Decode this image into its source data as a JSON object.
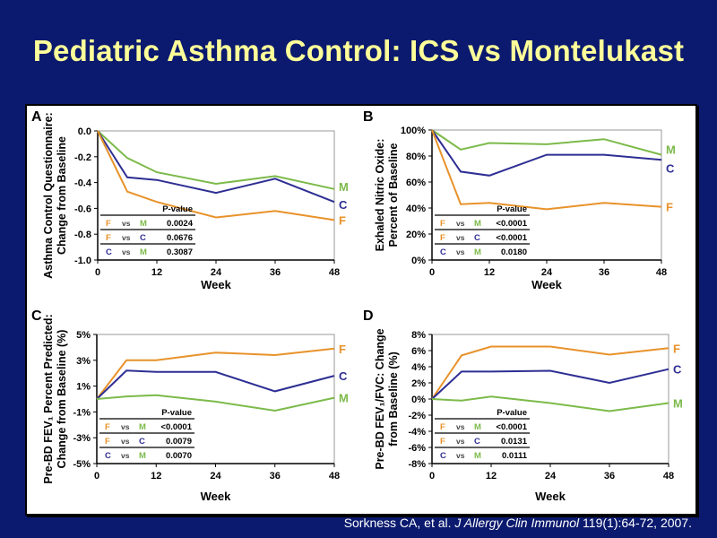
{
  "slide": {
    "title": "Pediatric Asthma Control: ICS vs Montelukast",
    "citation_authors": "Sorkness CA, et al.",
    "citation_journal": "J Allergy Clin Immunol",
    "citation_rest": "119(1):64-72, 2007."
  },
  "colors": {
    "F": "#e8922a",
    "C": "#2e2e94",
    "M": "#7cba4a",
    "background": "#0b1a6e",
    "title": "#ffff99"
  },
  "pvalue_header": "P-value",
  "vs_label": "vs",
  "chart_data": [
    {
      "panel": "A",
      "type": "line",
      "ylabel": [
        "Asthma Control Questionnaire:",
        "Change from Baseline"
      ],
      "xlabel": "Week",
      "x": [
        0,
        6,
        12,
        24,
        36,
        48
      ],
      "xticks": [
        0,
        12,
        24,
        36,
        48
      ],
      "ylim": [
        -1.0,
        0.0
      ],
      "yticks": [
        0.0,
        -0.2,
        -0.4,
        -0.6,
        -0.8,
        -1.0
      ],
      "ytick_labels": [
        "0.0",
        "-0.2",
        "-0.4",
        "-0.6",
        "-0.8",
        "-1.0"
      ],
      "series": [
        {
          "name": "M",
          "values": [
            0,
            -0.21,
            -0.32,
            -0.41,
            -0.35,
            -0.45
          ]
        },
        {
          "name": "C",
          "values": [
            0,
            -0.36,
            -0.38,
            -0.48,
            -0.37,
            -0.55
          ]
        },
        {
          "name": "F",
          "values": [
            0,
            -0.47,
            -0.55,
            -0.67,
            -0.62,
            -0.69
          ]
        }
      ],
      "pvalues": [
        {
          "a": "F",
          "b": "M",
          "p": "0.0024"
        },
        {
          "a": "F",
          "b": "C",
          "p": "0.0676"
        },
        {
          "a": "C",
          "b": "M",
          "p": "0.3087"
        }
      ]
    },
    {
      "panel": "B",
      "type": "line",
      "ylabel": [
        "Exhaled Nitric Oxide:",
        "Percent of Baseline"
      ],
      "xlabel": "Week",
      "x": [
        0,
        6,
        12,
        24,
        36,
        48
      ],
      "xticks": [
        0,
        12,
        24,
        36,
        48
      ],
      "ylim": [
        0,
        100
      ],
      "yticks": [
        100,
        80,
        60,
        40,
        20,
        0
      ],
      "ytick_labels": [
        "100%",
        "80%",
        "60%",
        "40%",
        "20%",
        "0%"
      ],
      "series": [
        {
          "name": "M",
          "values": [
            100,
            85,
            90,
            89,
            93,
            81
          ]
        },
        {
          "name": "C",
          "values": [
            100,
            68,
            65,
            81,
            81,
            77
          ]
        },
        {
          "name": "F",
          "values": [
            100,
            43,
            44,
            39,
            44,
            41
          ]
        }
      ],
      "pvalues": [
        {
          "a": "F",
          "b": "M",
          "p": "<0.0001"
        },
        {
          "a": "F",
          "b": "C",
          "p": "<0.0001"
        },
        {
          "a": "C",
          "b": "M",
          "p": "0.0180"
        }
      ]
    },
    {
      "panel": "C",
      "type": "line",
      "ylabel": [
        "Pre-BD FEV₁ Percent Predicted:",
        "Change from Baseline (%)"
      ],
      "xlabel": "Week",
      "x": [
        0,
        6,
        12,
        24,
        36,
        48
      ],
      "xticks": [
        0,
        12,
        24,
        36,
        48
      ],
      "ylim": [
        -5,
        5
      ],
      "yticks": [
        5,
        3,
        1,
        -1,
        -3,
        -5
      ],
      "ytick_labels": [
        "5%",
        "3%",
        "1%",
        "-1%",
        "-3%",
        "-5%"
      ],
      "series": [
        {
          "name": "F",
          "values": [
            0,
            3.0,
            3.0,
            3.6,
            3.4,
            3.9
          ]
        },
        {
          "name": "C",
          "values": [
            0,
            2.2,
            2.1,
            2.1,
            0.6,
            1.8
          ]
        },
        {
          "name": "M",
          "values": [
            0,
            0.2,
            0.3,
            -0.2,
            -0.9,
            0.1
          ]
        }
      ],
      "pvalues": [
        {
          "a": "F",
          "b": "M",
          "p": "<0.0001"
        },
        {
          "a": "F",
          "b": "C",
          "p": "0.0079"
        },
        {
          "a": "C",
          "b": "M",
          "p": "0.0070"
        }
      ]
    },
    {
      "panel": "D",
      "type": "line",
      "ylabel": [
        "Pre-BD FEV₁/FVC:  Change",
        "from Baseline (%)"
      ],
      "xlabel": "Week",
      "x": [
        0,
        6,
        12,
        24,
        36,
        48
      ],
      "xticks": [
        0,
        12,
        24,
        36,
        48
      ],
      "ylim": [
        -8,
        8
      ],
      "yticks": [
        8,
        6,
        4,
        2,
        0,
        -2,
        -4,
        -6,
        -8
      ],
      "ytick_labels": [
        "8%",
        "6%",
        "4%",
        "2%",
        "0%",
        "-2%",
        "-4%",
        "-6%",
        "-8%"
      ],
      "series": [
        {
          "name": "F",
          "values": [
            0,
            5.4,
            6.5,
            6.5,
            5.5,
            6.3
          ]
        },
        {
          "name": "C",
          "values": [
            0,
            3.4,
            3.4,
            3.5,
            2.0,
            3.7
          ]
        },
        {
          "name": "M",
          "values": [
            0,
            -0.2,
            0.3,
            -0.5,
            -1.5,
            -0.5
          ]
        }
      ],
      "pvalues": [
        {
          "a": "F",
          "b": "M",
          "p": "<0.0001"
        },
        {
          "a": "F",
          "b": "C",
          "p": "0.0131"
        },
        {
          "a": "C",
          "b": "M",
          "p": "0.0111"
        }
      ]
    }
  ]
}
